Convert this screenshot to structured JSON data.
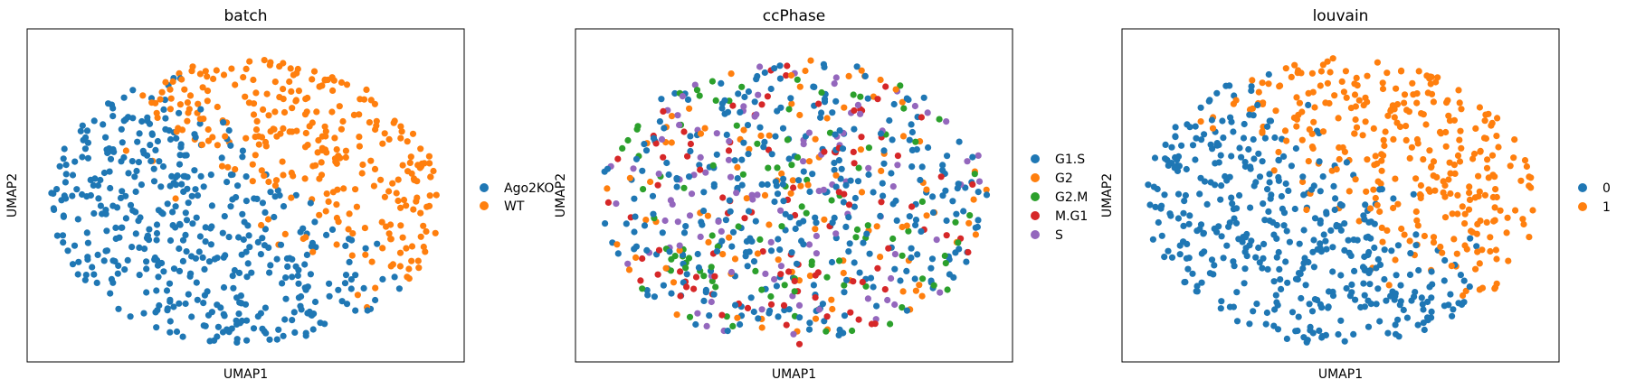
{
  "figure": {
    "panels": [
      {
        "title": "batch",
        "xlabel": "UMAP1",
        "ylabel": "UMAP2",
        "legend": [
          {
            "label": "Ago2KO",
            "color": "#1f77b4"
          },
          {
            "label": "WT",
            "color": "#ff7f0e"
          }
        ]
      },
      {
        "title": "ccPhase",
        "xlabel": "UMAP1",
        "ylabel": "UMAP2",
        "legend": [
          {
            "label": "G1.S",
            "color": "#1f77b4"
          },
          {
            "label": "G2",
            "color": "#ff7f0e"
          },
          {
            "label": "G2.M",
            "color": "#2ca02c"
          },
          {
            "label": "M.G1",
            "color": "#d62728"
          },
          {
            "label": "S",
            "color": "#9467bd"
          }
        ]
      },
      {
        "title": "louvain",
        "xlabel": "UMAP1",
        "ylabel": "UMAP2",
        "legend": [
          {
            "label": "0",
            "color": "#1f77b4"
          },
          {
            "label": "1",
            "color": "#ff7f0e"
          }
        ]
      }
    ]
  },
  "chart_data": [
    {
      "type": "scatter",
      "title": "batch",
      "xlabel": "UMAP1",
      "ylabel": "UMAP2",
      "xticks": "none",
      "yticks": "none",
      "grid": false,
      "legend_position": "right-outside",
      "categories": [
        "Ago2KO",
        "WT"
      ],
      "colors": {
        "Ago2KO": "#1f77b4",
        "WT": "#ff7f0e"
      },
      "points": [
        {
          "x": 1.4,
          "y": 5.0,
          "c": "Ago2KO"
        },
        {
          "x": 1.8,
          "y": 4.4,
          "c": "Ago2KO"
        },
        {
          "x": 2.5,
          "y": 6.1,
          "c": "Ago2KO"
        },
        {
          "x": 3.1,
          "y": 3.0,
          "c": "Ago2KO"
        },
        {
          "x": 3.6,
          "y": 5.4,
          "c": "Ago2KO"
        },
        {
          "x": 4.2,
          "y": 2.2,
          "c": "Ago2KO"
        },
        {
          "x": 4.6,
          "y": 4.0,
          "c": "Ago2KO"
        },
        {
          "x": 5.1,
          "y": 6.6,
          "c": "Ago2KO"
        },
        {
          "x": 5.5,
          "y": 1.5,
          "c": "Ago2KO"
        },
        {
          "x": 6.0,
          "y": 3.4,
          "c": "Ago2KO"
        },
        {
          "x": 6.4,
          "y": 5.0,
          "c": "Ago2KO"
        },
        {
          "x": 6.9,
          "y": 2.6,
          "c": "Ago2KO"
        },
        {
          "x": 7.3,
          "y": 1.2,
          "c": "Ago2KO"
        },
        {
          "x": 7.8,
          "y": 3.9,
          "c": "Ago2KO"
        },
        {
          "x": 8.3,
          "y": 2.0,
          "c": "Ago2KO"
        },
        {
          "x": 3.5,
          "y": 8.4,
          "c": "WT"
        },
        {
          "x": 4.3,
          "y": 8.9,
          "c": "WT"
        },
        {
          "x": 5.6,
          "y": 9.3,
          "c": "WT"
        },
        {
          "x": 6.5,
          "y": 8.1,
          "c": "WT"
        },
        {
          "x": 7.1,
          "y": 7.0,
          "c": "WT"
        },
        {
          "x": 7.6,
          "y": 8.7,
          "c": "WT"
        },
        {
          "x": 8.0,
          "y": 6.2,
          "c": "WT"
        },
        {
          "x": 8.5,
          "y": 7.6,
          "c": "WT"
        },
        {
          "x": 8.9,
          "y": 5.3,
          "c": "WT"
        },
        {
          "x": 9.3,
          "y": 6.8,
          "c": "WT"
        },
        {
          "x": 9.6,
          "y": 4.6,
          "c": "WT"
        },
        {
          "x": 9.9,
          "y": 5.7,
          "c": "WT"
        }
      ]
    },
    {
      "type": "scatter",
      "title": "ccPhase",
      "xlabel": "UMAP1",
      "ylabel": "UMAP2",
      "xticks": "none",
      "yticks": "none",
      "grid": false,
      "legend_position": "right-outside",
      "categories": [
        "G1.S",
        "G2",
        "G2.M",
        "M.G1",
        "S"
      ],
      "colors": {
        "G1.S": "#1f77b4",
        "G2": "#ff7f0e",
        "G2.M": "#2ca02c",
        "M.G1": "#d62728",
        "S": "#9467bd"
      },
      "points": [
        {
          "x": 1.5,
          "y": 5.2,
          "c": "G2.M"
        },
        {
          "x": 2.0,
          "y": 6.8,
          "c": "S"
        },
        {
          "x": 2.6,
          "y": 3.8,
          "c": "G1.S"
        },
        {
          "x": 3.0,
          "y": 8.2,
          "c": "G2.M"
        },
        {
          "x": 3.4,
          "y": 2.4,
          "c": "M.G1"
        },
        {
          "x": 4.0,
          "y": 5.9,
          "c": "G2"
        },
        {
          "x": 4.5,
          "y": 7.6,
          "c": "S"
        },
        {
          "x": 4.9,
          "y": 1.5,
          "c": "M.G1"
        },
        {
          "x": 5.4,
          "y": 4.3,
          "c": "G1.S"
        },
        {
          "x": 5.8,
          "y": 9.0,
          "c": "G2"
        },
        {
          "x": 6.3,
          "y": 6.4,
          "c": "M.G1"
        },
        {
          "x": 6.7,
          "y": 2.9,
          "c": "G2.M"
        },
        {
          "x": 7.2,
          "y": 7.9,
          "c": "S"
        },
        {
          "x": 7.6,
          "y": 5.1,
          "c": "G1.S"
        },
        {
          "x": 8.0,
          "y": 3.3,
          "c": "M.G1"
        },
        {
          "x": 8.4,
          "y": 6.9,
          "c": "G2"
        },
        {
          "x": 8.9,
          "y": 4.8,
          "c": "G2.M"
        },
        {
          "x": 9.4,
          "y": 5.6,
          "c": "M.G1"
        },
        {
          "x": 9.8,
          "y": 4.4,
          "c": "G1.S"
        }
      ]
    },
    {
      "type": "scatter",
      "title": "louvain",
      "xlabel": "UMAP1",
      "ylabel": "UMAP2",
      "xticks": "none",
      "yticks": "none",
      "grid": false,
      "legend_position": "right-outside",
      "categories": [
        "0",
        "1"
      ],
      "colors": {
        "0": "#1f77b4",
        "1": "#ff7f0e"
      },
      "points": [
        {
          "x": 1.4,
          "y": 5.0,
          "c": "0"
        },
        {
          "x": 2.1,
          "y": 6.5,
          "c": "0"
        },
        {
          "x": 2.8,
          "y": 3.6,
          "c": "0"
        },
        {
          "x": 3.3,
          "y": 7.9,
          "c": "0"
        },
        {
          "x": 3.9,
          "y": 2.3,
          "c": "0"
        },
        {
          "x": 4.5,
          "y": 5.6,
          "c": "0"
        },
        {
          "x": 5.0,
          "y": 1.4,
          "c": "0"
        },
        {
          "x": 5.6,
          "y": 4.1,
          "c": "0"
        },
        {
          "x": 6.1,
          "y": 2.7,
          "c": "0"
        },
        {
          "x": 6.6,
          "y": 5.2,
          "c": "0"
        },
        {
          "x": 7.1,
          "y": 1.6,
          "c": "0"
        },
        {
          "x": 7.5,
          "y": 3.4,
          "c": "0"
        },
        {
          "x": 4.2,
          "y": 8.8,
          "c": "1"
        },
        {
          "x": 5.3,
          "y": 9.4,
          "c": "1"
        },
        {
          "x": 6.2,
          "y": 8.0,
          "c": "1"
        },
        {
          "x": 6.9,
          "y": 6.8,
          "c": "1"
        },
        {
          "x": 7.4,
          "y": 8.6,
          "c": "1"
        },
        {
          "x": 7.9,
          "y": 5.9,
          "c": "1"
        },
        {
          "x": 8.4,
          "y": 7.4,
          "c": "1"
        },
        {
          "x": 8.8,
          "y": 4.4,
          "c": "1"
        },
        {
          "x": 9.2,
          "y": 6.4,
          "c": "1"
        },
        {
          "x": 9.6,
          "y": 5.2,
          "c": "1"
        },
        {
          "x": 9.9,
          "y": 3.8,
          "c": "1"
        }
      ]
    }
  ]
}
